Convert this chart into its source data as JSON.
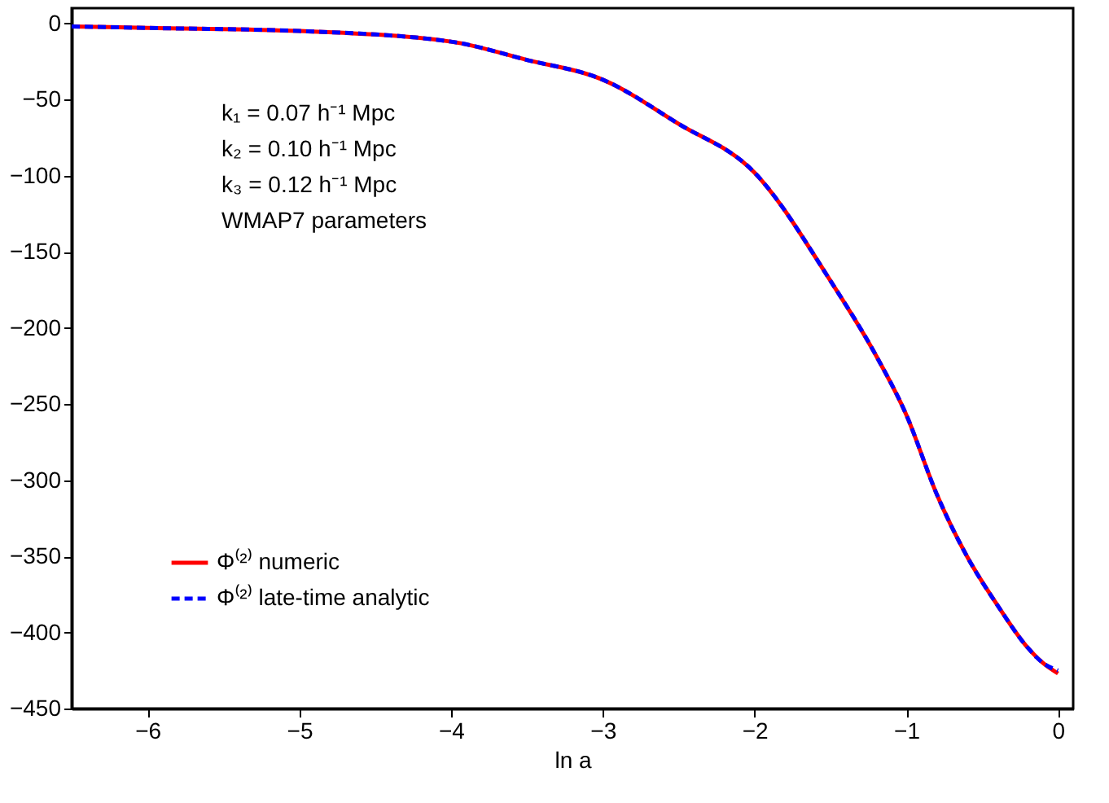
{
  "chart_data": {
    "type": "line",
    "xlabel": "ln a",
    "x": [
      -6.5,
      -6,
      -5,
      -4,
      -3.5,
      -3,
      -2.5,
      -2,
      -1.5,
      -1.2,
      -1,
      -0.8,
      -0.6,
      -0.4,
      -0.2,
      -0.1,
      0
    ],
    "series": [
      {
        "name": "Φ⁽²⁾ numeric",
        "color": "#ff0000",
        "line_style": "solid",
        "values": [
          -2,
          -3,
          -5,
          -12,
          -24,
          -37,
          -66,
          -98,
          -169,
          -218,
          -257,
          -309,
          -350,
          -382,
          -410,
          -420,
          -427
        ]
      },
      {
        "name": "Φ⁽²⁾ late-time analytic",
        "color": "#0000ff",
        "line_style": "dashed",
        "values": [
          -2,
          -3,
          -5,
          -12,
          -24,
          -37,
          -66,
          -98,
          -169,
          -218,
          -257,
          -309,
          -350,
          -382,
          -410,
          -420,
          -425
        ]
      }
    ],
    "xlim": [
      -6.5,
      0.1
    ],
    "xticks": [
      -6,
      -5,
      -4,
      -3,
      -2,
      -1,
      0
    ],
    "ylim": [
      -450,
      10
    ],
    "yticks": [
      0,
      -50,
      -100,
      -150,
      -200,
      -250,
      -300,
      -350,
      -400,
      -450
    ],
    "annotations": [
      "k₁ = 0.07 h⁻¹ Mpc",
      "k₂ = 0.10 h⁻¹ Mpc",
      "k₃ = 0.12 h⁻¹ Mpc",
      "WMAP7 parameters"
    ],
    "grid": false,
    "legend": "bottom left",
    "marker": "none"
  }
}
